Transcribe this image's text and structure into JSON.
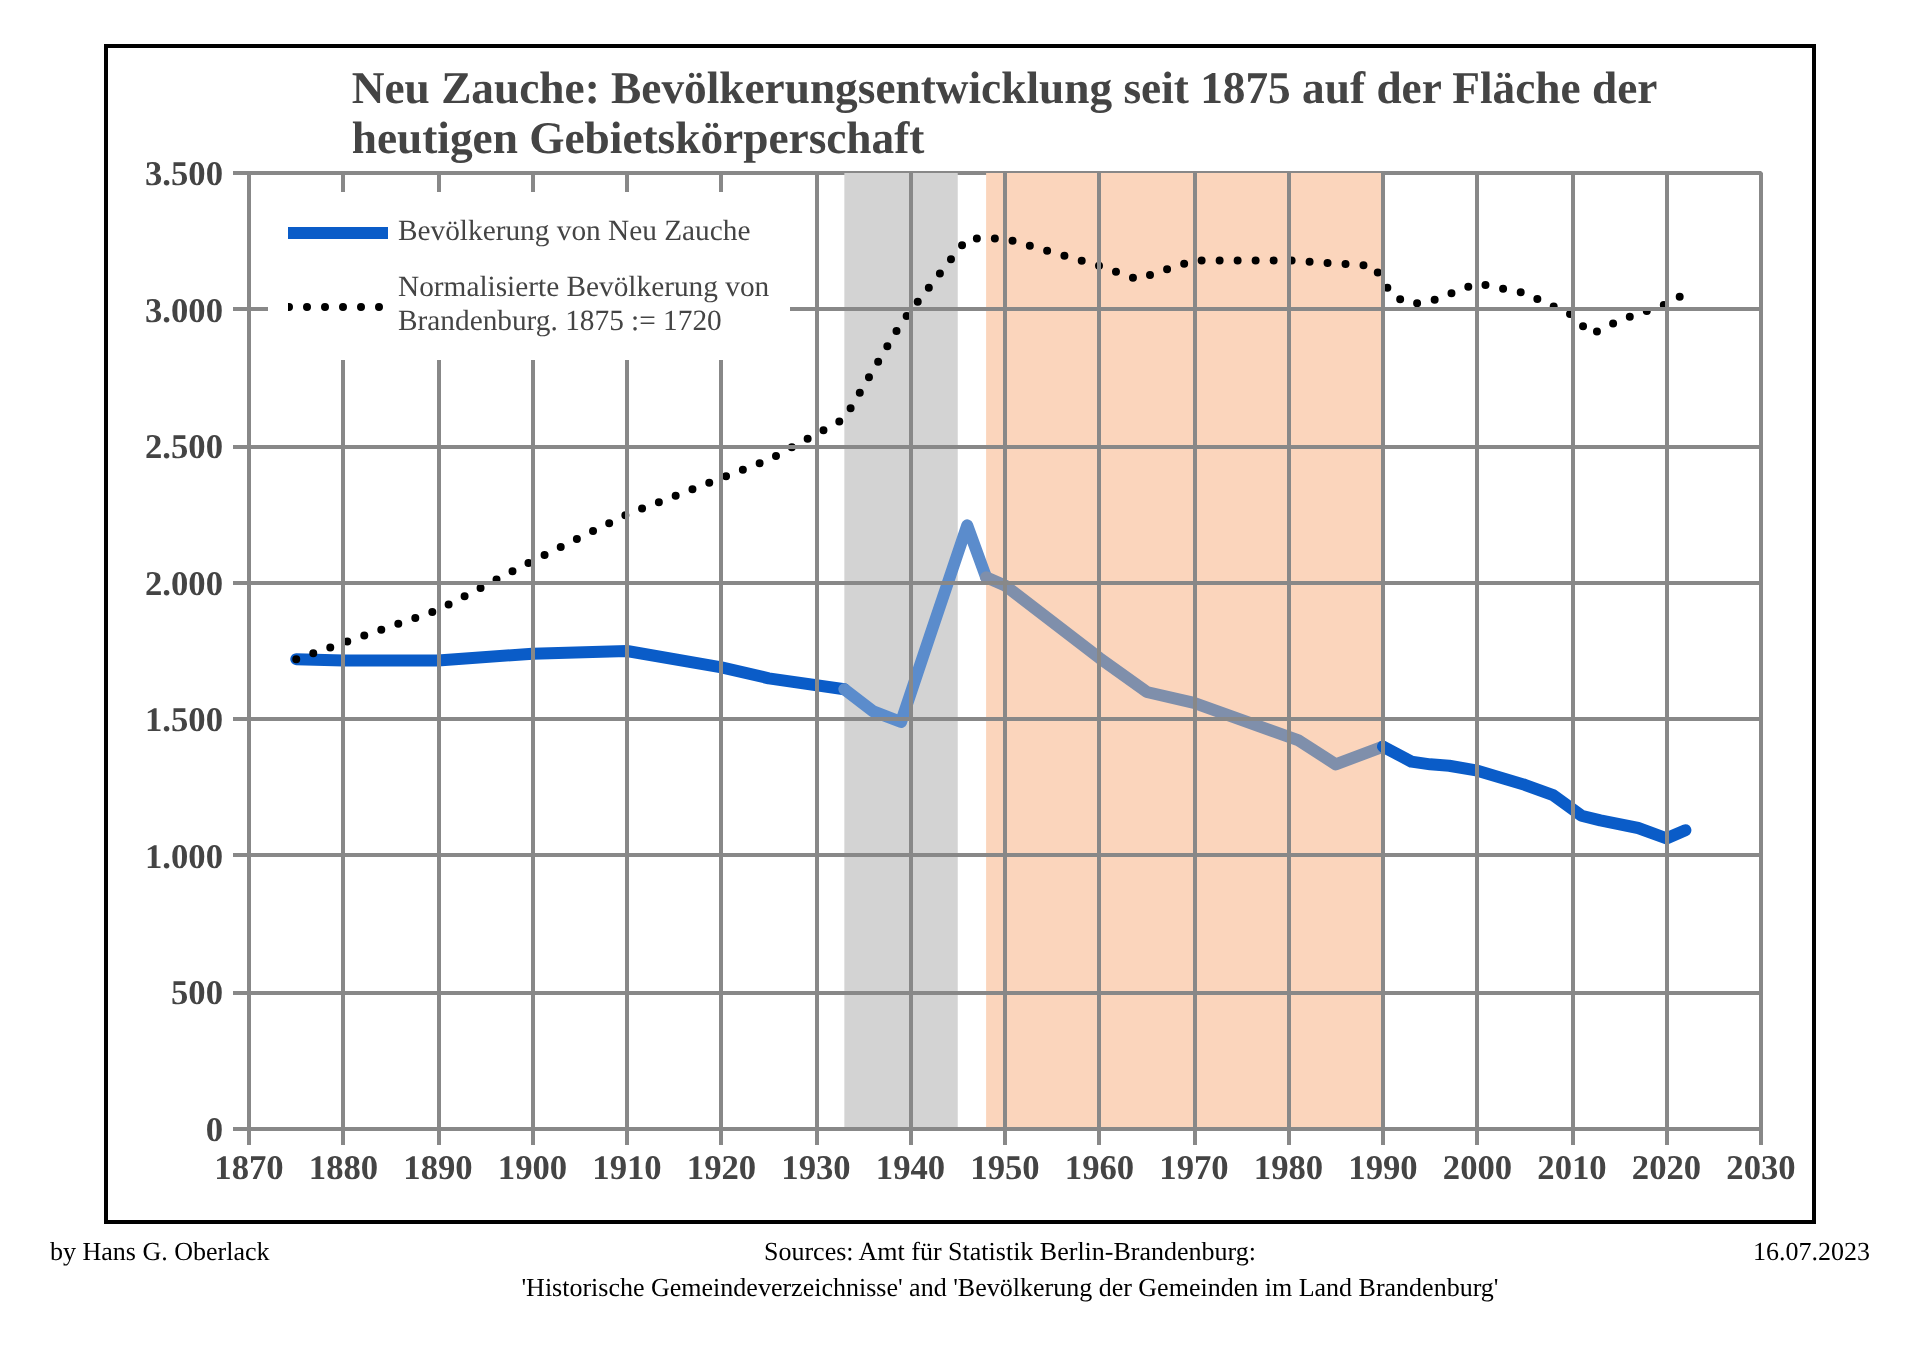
{
  "chart_data": {
    "type": "line",
    "title": "Neu Zauche: Bevölkerungsentwicklung seit 1875 auf der Fläche der heutigen Gebietskörperschaft",
    "xlim": [
      1870,
      2030
    ],
    "xticks": [
      1870,
      1880,
      1890,
      1900,
      1910,
      1920,
      1930,
      1940,
      1950,
      1960,
      1970,
      1980,
      1990,
      2000,
      2010,
      2020,
      2030
    ],
    "ylim": [
      0,
      3500
    ],
    "yticks": [
      {
        "value": 0,
        "label": "0"
      },
      {
        "value": 500,
        "label": "500"
      },
      {
        "value": 1000,
        "label": "1.000"
      },
      {
        "value": 1500,
        "label": "1.500"
      },
      {
        "value": 2000,
        "label": "2.000"
      },
      {
        "value": 2500,
        "label": "2.500"
      },
      {
        "value": 3000,
        "label": "3.000"
      },
      {
        "value": 3500,
        "label": "3.500"
      }
    ],
    "grid": true,
    "legend": "top left",
    "marker": "none",
    "series": [
      {
        "name": "Bevölkerung von Neu Zauche",
        "color": "#0a5cc8",
        "line_style": "solid",
        "x": [
          1875,
          1880,
          1890,
          1900,
          1910,
          1920,
          1925,
          1933
        ],
        "values": [
          1720,
          1715,
          1715,
          1740,
          1750,
          1690,
          1650,
          1610
        ]
      },
      {
        "color": "#5b8ccc",
        "line_style": "solid",
        "x": [
          1933,
          1936,
          1939,
          1942,
          1946,
          1948
        ],
        "values": [
          1610,
          1530,
          1490,
          1800,
          2210,
          2020
        ]
      },
      {
        "color": "#7f8fab",
        "line_style": "solid",
        "x": [
          1948,
          1950,
          1960,
          1965,
          1970,
          1981,
          1985,
          1990
        ],
        "values": [
          2020,
          1990,
          1724,
          1600,
          1560,
          1424,
          1335,
          1400
        ]
      },
      {
        "color": "#0a5cc8",
        "line_style": "solid",
        "x": [
          1990,
          1993,
          1995,
          1997,
          2000,
          2005,
          2008,
          2011,
          2013,
          2017,
          2020,
          2022
        ],
        "values": [
          1400,
          1345,
          1335,
          1330,
          1312,
          1260,
          1222,
          1147,
          1130,
          1102,
          1064,
          1094
        ]
      },
      {
        "name": "Normalisierte Bevölkerung von Brandenburg. 1875 := 1720",
        "color": "#000000",
        "line_style": "dotted",
        "x": [
          1875,
          1880,
          1890,
          1900,
          1910,
          1925,
          1933,
          1939,
          1946,
          1950,
          1960,
          1964,
          1970,
          1980,
          1989,
          1991,
          1993,
          1995,
          2000,
          2005,
          2010,
          2012,
          2015,
          2020,
          2022
        ],
        "values": [
          1720,
          1780,
          1900,
          2080,
          2250,
          2450,
          2600,
          2950,
          3260,
          3260,
          3160,
          3111,
          3180,
          3180,
          3160,
          3050,
          3020,
          3030,
          3096,
          3060,
          2980,
          2909,
          2960,
          3020,
          3059
        ]
      }
    ],
    "bands": [
      {
        "axis": "x",
        "from": 1933,
        "to": 1945,
        "color": "#d3d3d3"
      },
      {
        "axis": "x",
        "from": 1948,
        "to": 1990,
        "color": "#fbd5bc"
      }
    ],
    "annotations": [
      "by Hans G. Oberlack",
      "Sources: Amt für Statistik Berlin-Brandenburg:",
      "'Historische Gemeindeverzeichnisse' and 'Bevölkerung der Gemeinden im Land Brandenburg'",
      "16.07.2023"
    ]
  }
}
